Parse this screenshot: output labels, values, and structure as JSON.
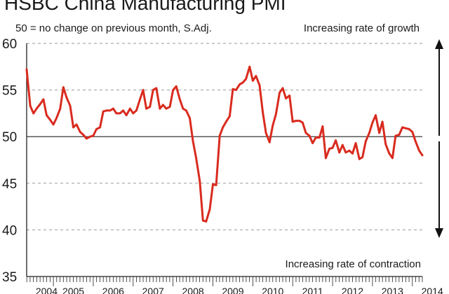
{
  "chart_data": {
    "type": "line",
    "title": "HSBC China Manufacturing PMI",
    "subtitle": "50 = no change on previous month, S.Adj.",
    "annotation_top": "Increasing rate of growth",
    "annotation_bottom": "Increasing rate of contraction",
    "ylim": [
      35,
      60
    ],
    "yticks": [
      35,
      40,
      45,
      50,
      55,
      60
    ],
    "reference_line": 50,
    "xlim": [
      2004.33,
      2014.25
    ],
    "xticks": [
      "2004",
      "2005",
      "2006",
      "2007",
      "2008",
      "2009",
      "2010",
      "2011",
      "2012",
      "2013",
      "2014"
    ],
    "grid": "horizontal dashed",
    "colors": {
      "line": "#d92b1f",
      "grid": "#9a9a9a",
      "axis": "#222222"
    },
    "series": [
      {
        "x": [
          2004.33,
          2004.42,
          2004.5,
          2004.58,
          2004.67,
          2004.75,
          2004.83,
          2004.92,
          2005.0,
          2005.08,
          2005.17,
          2005.25,
          2005.33,
          2005.42,
          2005.5,
          2005.58,
          2005.67,
          2005.75,
          2005.83,
          2005.92,
          2006.0,
          2006.08,
          2006.17,
          2006.25,
          2006.33,
          2006.42,
          2006.5,
          2006.58,
          2006.67,
          2006.75,
          2006.83,
          2006.92,
          2007.0,
          2007.08,
          2007.17,
          2007.25,
          2007.33,
          2007.42,
          2007.5,
          2007.58,
          2007.67,
          2007.75,
          2007.83,
          2007.92,
          2008.0,
          2008.08,
          2008.17,
          2008.25,
          2008.33,
          2008.42,
          2008.5,
          2008.58,
          2008.67,
          2008.75,
          2008.83,
          2008.92,
          2009.0,
          2009.08,
          2009.17,
          2009.25,
          2009.33,
          2009.42,
          2009.5,
          2009.58,
          2009.67,
          2009.75,
          2009.83,
          2009.92,
          2010.0,
          2010.08,
          2010.17,
          2010.25,
          2010.33,
          2010.42,
          2010.5,
          2010.58,
          2010.67,
          2010.75,
          2010.83,
          2010.92,
          2011.0,
          2011.08,
          2011.17,
          2011.25,
          2011.33,
          2011.42,
          2011.5,
          2011.58,
          2011.67,
          2011.75,
          2011.83,
          2011.92,
          2012.0,
          2012.08,
          2012.17,
          2012.25,
          2012.33,
          2012.42,
          2012.5,
          2012.58,
          2012.67,
          2012.75,
          2012.83,
          2012.92,
          2013.0,
          2013.08,
          2013.17,
          2013.25,
          2013.33,
          2013.42,
          2013.5,
          2013.58,
          2013.67,
          2013.75,
          2013.83,
          2013.92,
          2014.0,
          2014.08,
          2014.17,
          2014.25
        ],
        "y": [
          57.2,
          53.3,
          52.5,
          53.0,
          53.5,
          54.0,
          52.3,
          51.8,
          51.3,
          52.0,
          53.0,
          55.3,
          54.2,
          53.3,
          51.0,
          51.3,
          50.5,
          50.2,
          49.8,
          50.0,
          50.1,
          50.8,
          51.0,
          52.7,
          52.8,
          52.8,
          53.0,
          52.5,
          52.5,
          52.8,
          52.3,
          53.0,
          52.5,
          52.8,
          54.0,
          55.0,
          53.0,
          53.2,
          55.0,
          55.2,
          53.0,
          53.4,
          53.0,
          53.2,
          55.0,
          55.4,
          54.0,
          53.0,
          52.8,
          52.0,
          49.5,
          47.7,
          45.2,
          41.0,
          40.9,
          42.2,
          44.9,
          44.8,
          50.1,
          51.0,
          51.6,
          52.2,
          55.1,
          55.0,
          55.6,
          55.8,
          56.2,
          57.5,
          56.0,
          56.5,
          55.5,
          52.6,
          50.4,
          49.4,
          51.2,
          52.4,
          54.7,
          55.2,
          54.1,
          54.4,
          51.6,
          51.7,
          51.7,
          51.5,
          50.4,
          50.1,
          49.3,
          49.9,
          49.9,
          51.1,
          47.7,
          48.7,
          48.8,
          49.6,
          48.3,
          49.1,
          48.3,
          48.5,
          48.2,
          49.3,
          47.6,
          47.8,
          49.5,
          50.4,
          51.5,
          52.3,
          50.4,
          51.6,
          49.2,
          48.2,
          47.7,
          50.1,
          50.2,
          51.0,
          50.9,
          50.8,
          50.5,
          49.5,
          48.5,
          48.0
        ]
      }
    ]
  }
}
